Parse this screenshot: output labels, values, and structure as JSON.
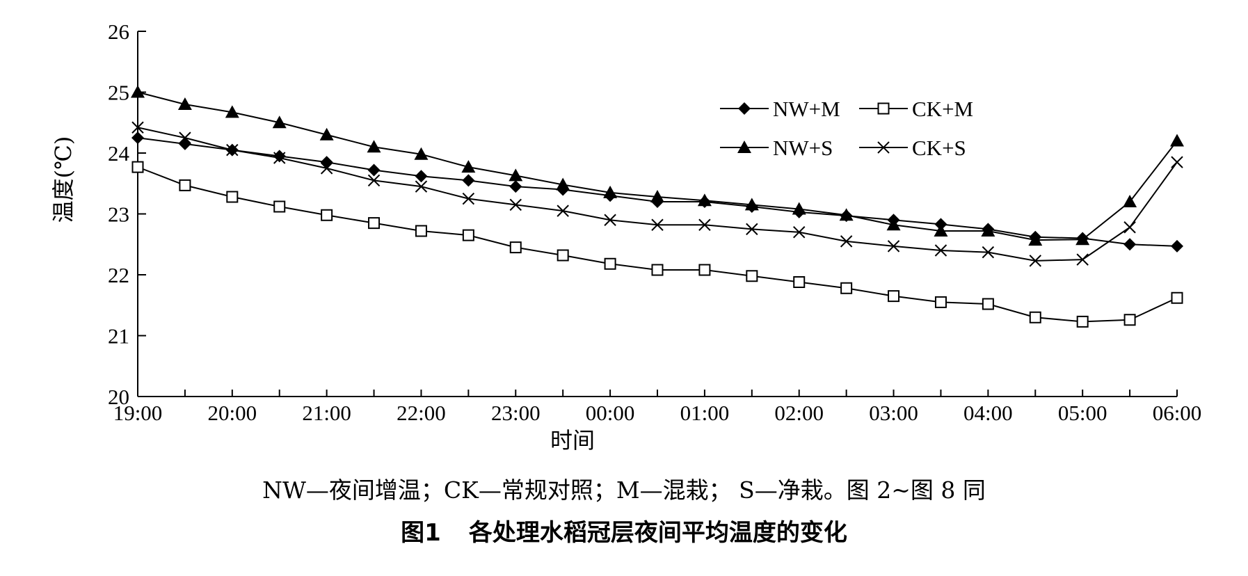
{
  "chart_data": {
    "type": "line",
    "title": "",
    "xlabel": "时间",
    "ylabel": "温度(℃)",
    "ylim": [
      20,
      26
    ],
    "yticks": [
      "20",
      "21",
      "22",
      "23",
      "24",
      "25",
      "26"
    ],
    "xticks": [
      "19:00",
      "20:00",
      "21:00",
      "22:00",
      "23:00",
      "00:00",
      "01:00",
      "02:00",
      "03:00",
      "04:00",
      "05:00",
      "06:00"
    ],
    "x": [
      "19:00",
      "19:30",
      "20:00",
      "20:30",
      "21:00",
      "21:30",
      "22:00",
      "22:30",
      "23:00",
      "23:30",
      "00:00",
      "00:30",
      "01:00",
      "01:30",
      "02:00",
      "02:30",
      "03:00",
      "03:30",
      "04:00",
      "04:30",
      "05:00",
      "05:30",
      "06:00"
    ],
    "grid": false,
    "legend_position": "top-right",
    "series": [
      {
        "name": "NW+M",
        "marker": "diamond",
        "values": [
          24.25,
          24.15,
          24.05,
          23.95,
          23.85,
          23.72,
          23.62,
          23.55,
          23.45,
          23.4,
          23.3,
          23.2,
          23.2,
          23.12,
          23.03,
          22.97,
          22.9,
          22.83,
          22.75,
          22.62,
          22.6,
          22.5,
          22.47
        ]
      },
      {
        "name": "CK+M",
        "marker": "square",
        "values": [
          23.77,
          23.47,
          23.28,
          23.12,
          22.98,
          22.85,
          22.72,
          22.65,
          22.45,
          22.32,
          22.18,
          22.08,
          22.08,
          21.98,
          21.88,
          21.78,
          21.65,
          21.55,
          21.52,
          21.3,
          21.23,
          21.26,
          21.62
        ]
      },
      {
        "name": "NW+S",
        "marker": "triangle",
        "values": [
          25.0,
          24.8,
          24.67,
          24.5,
          24.3,
          24.1,
          23.98,
          23.77,
          23.63,
          23.48,
          23.35,
          23.28,
          23.22,
          23.15,
          23.08,
          22.98,
          22.82,
          22.72,
          22.72,
          22.57,
          22.58,
          23.2,
          24.2
        ]
      },
      {
        "name": "CK+S",
        "marker": "x",
        "values": [
          24.42,
          24.25,
          24.05,
          23.92,
          23.75,
          23.55,
          23.45,
          23.25,
          23.15,
          23.05,
          22.9,
          22.82,
          22.82,
          22.75,
          22.7,
          22.55,
          22.47,
          22.4,
          22.37,
          22.23,
          22.25,
          22.78,
          23.85
        ]
      }
    ]
  },
  "note": "NW—夜间增温；CK—常规对照；M—混栽；  S—净栽。图 2~图 8 同",
  "caption": {
    "number": "图1",
    "title": "各处理水稻冠层夜间平均温度的变化"
  }
}
